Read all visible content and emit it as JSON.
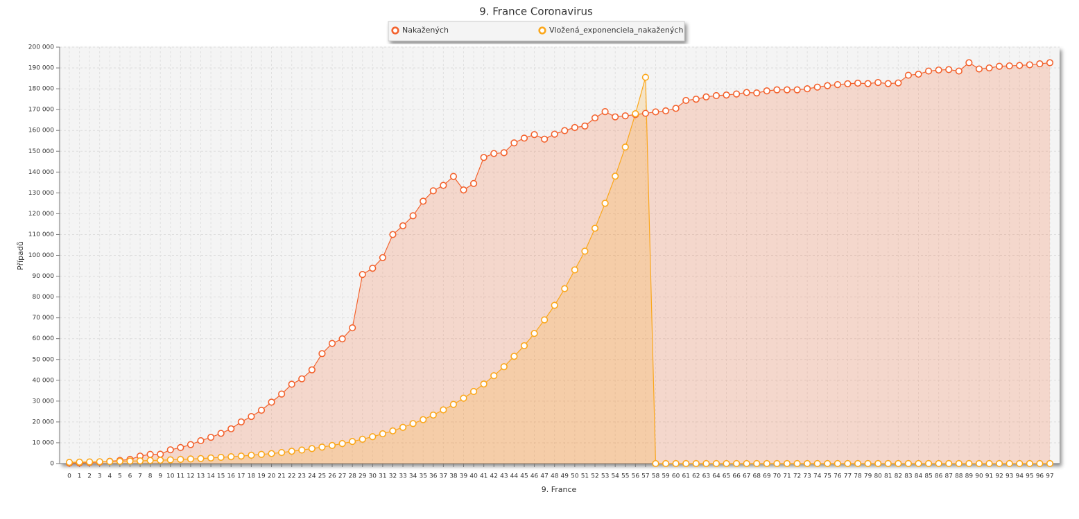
{
  "chart_data": {
    "type": "area",
    "title": "9. France Coronavirus",
    "x_label": "9. France",
    "y_label": "Případů",
    "grid": true,
    "legend": "top",
    "categories": [
      "0",
      "1",
      "2",
      "3",
      "4",
      "5",
      "6",
      "7",
      "8",
      "9",
      "10",
      "11",
      "12",
      "13",
      "14",
      "15",
      "16",
      "17",
      "18",
      "19",
      "20",
      "21",
      "22",
      "23",
      "24",
      "25",
      "26",
      "27",
      "28",
      "29",
      "30",
      "31",
      "32",
      "33",
      "34",
      "35",
      "36",
      "37",
      "38",
      "39",
      "40",
      "41",
      "42",
      "43",
      "44",
      "45",
      "46",
      "47",
      "48",
      "49",
      "50",
      "51",
      "52",
      "53",
      "54",
      "55",
      "56",
      "57",
      "58",
      "59",
      "60",
      "61",
      "62",
      "63",
      "64",
      "65",
      "66",
      "67",
      "68",
      "69",
      "70",
      "71",
      "72",
      "73",
      "74",
      "75",
      "76",
      "77",
      "78",
      "79",
      "80",
      "81",
      "82",
      "83",
      "84",
      "85",
      "86",
      "87",
      "88",
      "89",
      "90",
      "91",
      "92",
      "93",
      "94",
      "95",
      "96",
      "97"
    ],
    "series": [
      {
        "name": "Nakažených",
        "color": "#f3622d",
        "values": [
          200,
          300,
          500,
          700,
          1100,
          1500,
          2000,
          3600,
          4400,
          4500,
          6600,
          7700,
          9100,
          11000,
          12600,
          14500,
          16700,
          20000,
          22600,
          25600,
          29500,
          33400,
          38100,
          40700,
          45000,
          52800,
          57700,
          59900,
          65200,
          90800,
          93800,
          98900,
          110000,
          114200,
          119000,
          126000,
          131000,
          133600,
          137900,
          131400,
          134500,
          147000,
          148900,
          149300,
          154000,
          156300,
          158000,
          155800,
          158200,
          159900,
          161400,
          162100,
          166000,
          169000,
          166500,
          167000,
          167600,
          168200,
          168900,
          169400,
          170600,
          174400,
          175000,
          176100,
          176700,
          177000,
          177500,
          178200,
          178000,
          179000,
          179500,
          179500,
          179500,
          180000,
          180800,
          181500,
          182000,
          182400,
          182700,
          182500,
          183000,
          182500,
          182800,
          186500,
          187000,
          188500,
          189000,
          189200,
          188500,
          192500,
          189500,
          190000,
          190800,
          191000,
          191200,
          191500,
          192000,
          192500
        ]
      },
      {
        "name": "Vložená_exponenciela_nakažených",
        "color": "#fba71b",
        "values": [
          600,
          700,
          800,
          900,
          1000,
          1100,
          1200,
          1300,
          1500,
          1600,
          1800,
          2000,
          2200,
          2400,
          2700,
          3000,
          3300,
          3600,
          4000,
          4400,
          4800,
          5300,
          5900,
          6500,
          7200,
          7900,
          8700,
          9600,
          10600,
          11700,
          12900,
          14300,
          15700,
          17400,
          19200,
          21100,
          23300,
          25800,
          28400,
          31400,
          34600,
          38200,
          42200,
          46500,
          51500,
          56600,
          62500,
          69000,
          76000,
          84000,
          93000,
          102000,
          113000,
          125000,
          138000,
          152000,
          168000,
          185500,
          0,
          0,
          0,
          0,
          0,
          0,
          0,
          0,
          0,
          0,
          0,
          0,
          0,
          0,
          0,
          0,
          0,
          0,
          0,
          0,
          0,
          0,
          0,
          0,
          0,
          0,
          0,
          0,
          0,
          0,
          0,
          0,
          0,
          0,
          0,
          0,
          0,
          0,
          0,
          0
        ]
      }
    ],
    "ylim": [
      0,
      200000
    ],
    "yticks": [
      {
        "value": 0,
        "label": "0"
      },
      {
        "value": 10000,
        "label": "10 000"
      },
      {
        "value": 20000,
        "label": "20 000"
      },
      {
        "value": 30000,
        "label": "30 000"
      },
      {
        "value": 40000,
        "label": "40 000"
      },
      {
        "value": 50000,
        "label": "50 000"
      },
      {
        "value": 60000,
        "label": "60 000"
      },
      {
        "value": 70000,
        "label": "70 000"
      },
      {
        "value": 80000,
        "label": "80 000"
      },
      {
        "value": 90000,
        "label": "90 000"
      },
      {
        "value": 100000,
        "label": "100 000"
      },
      {
        "value": 110000,
        "label": "110 000"
      },
      {
        "value": 120000,
        "label": "120 000"
      },
      {
        "value": 130000,
        "label": "130 000"
      },
      {
        "value": 140000,
        "label": "140 000"
      },
      {
        "value": 150000,
        "label": "150 000"
      },
      {
        "value": 160000,
        "label": "160 000"
      },
      {
        "value": 170000,
        "label": "170 000"
      },
      {
        "value": 180000,
        "label": "180 000"
      },
      {
        "value": 190000,
        "label": "190 000"
      },
      {
        "value": 200000,
        "label": "200 000"
      }
    ]
  }
}
